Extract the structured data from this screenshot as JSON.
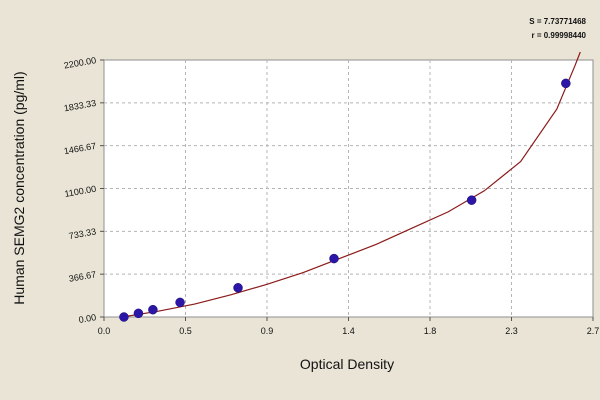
{
  "chart_data": {
    "type": "scatter",
    "title": "",
    "xlabel": "Optical Density",
    "ylabel": "Human SEMG2 concentration (pg/ml)",
    "xlim": [
      0.0,
      2.7
    ],
    "ylim": [
      0.0,
      2200.0
    ],
    "x_ticks": [
      "0.0",
      "0.5",
      "0.9",
      "1.4",
      "1.8",
      "2.3",
      "2.7"
    ],
    "x_tick_values": [
      0.0,
      0.45,
      0.9,
      1.35,
      1.8,
      2.25,
      2.7
    ],
    "y_ticks": [
      "0.00",
      "366.67",
      "733.33",
      "1100.00",
      "1466.67",
      "1833.33",
      "2200.00"
    ],
    "y_tick_values": [
      0.0,
      366.67,
      733.33,
      1100.0,
      1466.67,
      1833.33,
      2200.0
    ],
    "grid": true,
    "series": [
      {
        "points": [
          {
            "x": 0.11,
            "y": 0
          },
          {
            "x": 0.19,
            "y": 31.25
          },
          {
            "x": 0.27,
            "y": 62.5
          },
          {
            "x": 0.42,
            "y": 125
          },
          {
            "x": 0.74,
            "y": 250
          },
          {
            "x": 1.27,
            "y": 500
          },
          {
            "x": 2.03,
            "y": 1000
          },
          {
            "x": 2.55,
            "y": 2000
          }
        ],
        "color": "#2b16a8"
      }
    ],
    "fit_curve": {
      "color": "#8b1a1a",
      "points": [
        [
          0.1,
          0
        ],
        [
          0.3,
          50
        ],
        [
          0.5,
          110
        ],
        [
          0.7,
          190
        ],
        [
          0.9,
          280
        ],
        [
          1.1,
          380
        ],
        [
          1.3,
          500
        ],
        [
          1.5,
          620
        ],
        [
          1.7,
          760
        ],
        [
          1.9,
          900
        ],
        [
          2.1,
          1080
        ],
        [
          2.3,
          1330
        ],
        [
          2.5,
          1780
        ],
        [
          2.6,
          2150
        ],
        [
          2.63,
          2300
        ]
      ]
    },
    "annotations": [
      "S = 7.73771468",
      "r = 0.99998440"
    ],
    "colors": {
      "background": "#e9e4d6",
      "plot_area": "#ffffff",
      "frame": "#8f8f8f",
      "grid": "#b4b4b4"
    }
  }
}
